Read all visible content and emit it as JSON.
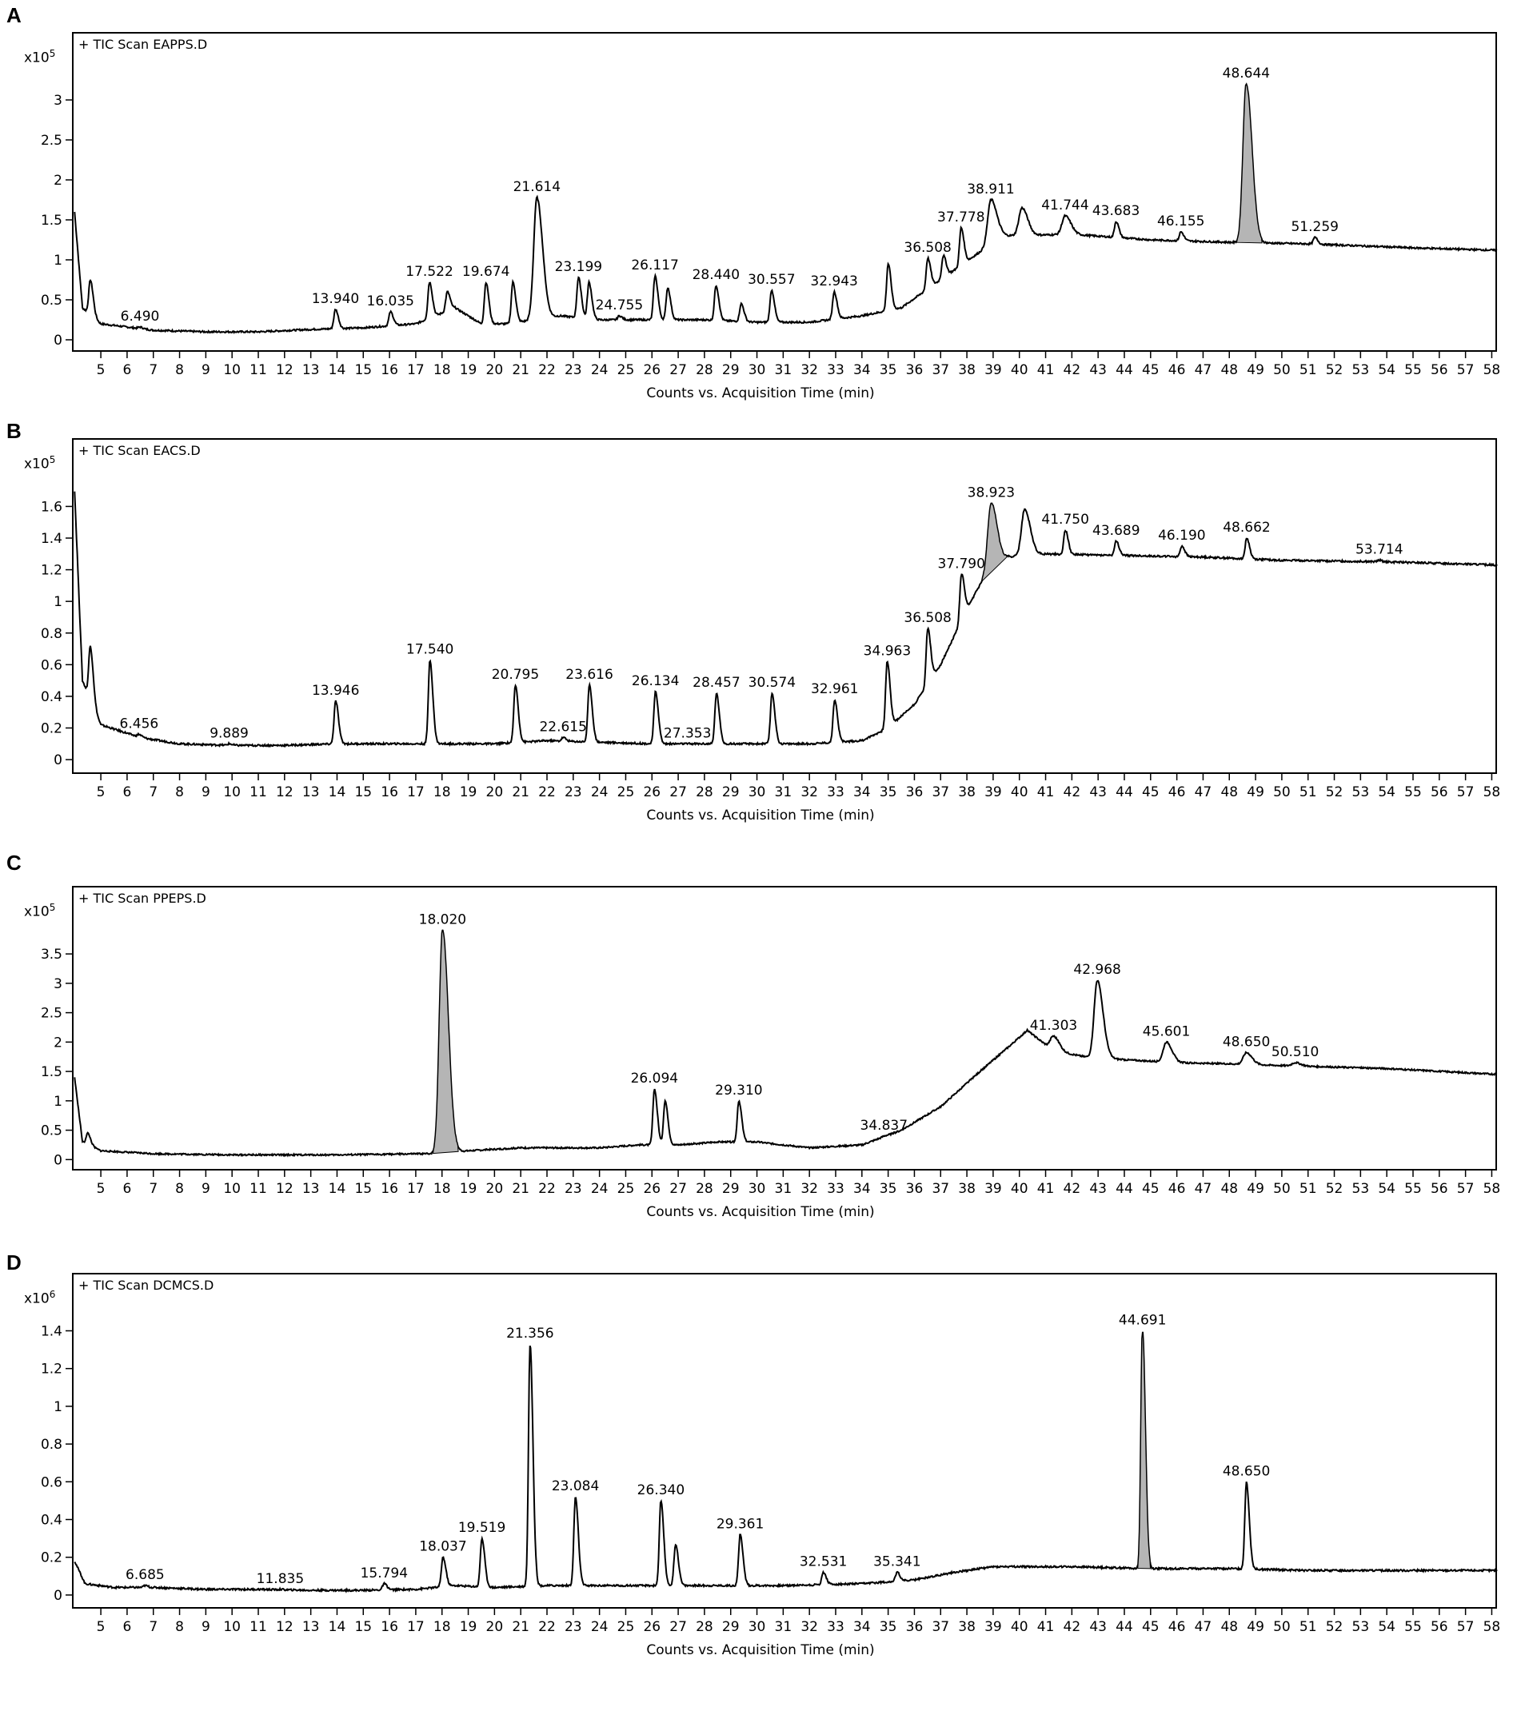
{
  "chart_data": [
    {
      "type": "line",
      "panel": "A",
      "title": "+ TIC Scan EAPPS.D",
      "scale_base": "x10",
      "scale_exp": "5",
      "xlabel": "Counts vs. Acquisition Time (min)",
      "ylabel": "",
      "xlim": [
        3.9,
        58.2
      ],
      "ylim": [
        -0.05,
        3.55
      ],
      "xticks": [
        5,
        6,
        7,
        8,
        9,
        10,
        11,
        12,
        13,
        14,
        15,
        16,
        17,
        18,
        19,
        20,
        21,
        22,
        23,
        24,
        25,
        26,
        27,
        28,
        29,
        30,
        31,
        32,
        33,
        34,
        35,
        36,
        37,
        38,
        39,
        40,
        41,
        42,
        43,
        44,
        45,
        46,
        47,
        48,
        49,
        50,
        51,
        52,
        53,
        54,
        55,
        56,
        57,
        58
      ],
      "yticks": [
        0,
        0.5,
        1,
        1.5,
        2,
        2.5,
        3
      ],
      "ytick_labels": [
        "0",
        "0.5",
        "1",
        "1.5",
        "2",
        "2.5",
        "3"
      ],
      "baseline": [
        [
          4.0,
          1.6
        ],
        [
          4.3,
          0.4
        ],
        [
          5.0,
          0.2
        ],
        [
          7,
          0.12
        ],
        [
          9,
          0.1
        ],
        [
          11,
          0.1
        ],
        [
          13,
          0.13
        ],
        [
          15,
          0.15
        ],
        [
          17,
          0.2
        ],
        [
          18.5,
          0.4
        ],
        [
          19.5,
          0.2
        ],
        [
          20.5,
          0.2
        ],
        [
          22.5,
          0.3
        ],
        [
          24,
          0.25
        ],
        [
          26,
          0.25
        ],
        [
          28,
          0.25
        ],
        [
          30,
          0.22
        ],
        [
          32,
          0.22
        ],
        [
          34,
          0.3
        ],
        [
          35.5,
          0.4
        ],
        [
          37,
          0.75
        ],
        [
          38.5,
          1.1
        ],
        [
          39.3,
          1.3
        ],
        [
          42,
          1.32
        ],
        [
          45,
          1.25
        ],
        [
          48,
          1.22
        ],
        [
          51,
          1.2
        ],
        [
          55,
          1.15
        ],
        [
          58.2,
          1.12
        ]
      ],
      "peaks": [
        {
          "rt": 4.6,
          "height": 0.75,
          "label": ""
        },
        {
          "rt": 6.49,
          "height": 0.16,
          "label": "6.490"
        },
        {
          "rt": 13.94,
          "height": 0.38,
          "label": "13.940"
        },
        {
          "rt": 16.035,
          "height": 0.35,
          "label": "16.035"
        },
        {
          "rt": 17.522,
          "height": 0.72,
          "label": "17.522"
        },
        {
          "rt": 18.2,
          "height": 0.6,
          "label": ""
        },
        {
          "rt": 19.674,
          "height": 0.72,
          "label": "19.674"
        },
        {
          "rt": 20.7,
          "height": 0.72,
          "label": ""
        },
        {
          "rt": 21.614,
          "height": 1.78,
          "label": "21.614"
        },
        {
          "rt": 23.199,
          "height": 0.78,
          "label": "23.199"
        },
        {
          "rt": 23.6,
          "height": 0.72,
          "label": ""
        },
        {
          "rt": 24.755,
          "height": 0.3,
          "label": "24.755"
        },
        {
          "rt": 26.117,
          "height": 0.8,
          "label": "26.117"
        },
        {
          "rt": 26.6,
          "height": 0.65,
          "label": ""
        },
        {
          "rt": 28.44,
          "height": 0.68,
          "label": "28.440"
        },
        {
          "rt": 29.4,
          "height": 0.45,
          "label": ""
        },
        {
          "rt": 30.557,
          "height": 0.62,
          "label": "30.557"
        },
        {
          "rt": 32.943,
          "height": 0.6,
          "label": "32.943"
        },
        {
          "rt": 35.0,
          "height": 0.95,
          "label": ""
        },
        {
          "rt": 36.508,
          "height": 1.02,
          "label": "36.508"
        },
        {
          "rt": 37.1,
          "height": 1.05,
          "label": ""
        },
        {
          "rt": 37.778,
          "height": 1.4,
          "label": "37.778"
        },
        {
          "rt": 38.911,
          "height": 1.75,
          "label": "38.911"
        },
        {
          "rt": 40.1,
          "height": 1.65,
          "label": ""
        },
        {
          "rt": 41.744,
          "height": 1.55,
          "label": "41.744"
        },
        {
          "rt": 43.683,
          "height": 1.48,
          "label": "43.683"
        },
        {
          "rt": 46.155,
          "height": 1.35,
          "label": "46.155"
        },
        {
          "rt": 48.644,
          "height": 3.2,
          "label": "48.644"
        },
        {
          "rt": 51.259,
          "height": 1.28,
          "label": "51.259"
        }
      ]
    },
    {
      "type": "line",
      "panel": "B",
      "title": "+ TIC Scan EACS.D",
      "scale_base": "x10",
      "scale_exp": "5",
      "xlabel": "Counts vs. Acquisition Time (min)",
      "ylabel": "",
      "xlim": [
        3.9,
        58.2
      ],
      "ylim": [
        -0.04,
        1.88
      ],
      "xticks": [
        5,
        6,
        7,
        8,
        9,
        10,
        11,
        12,
        13,
        14,
        15,
        16,
        17,
        18,
        19,
        20,
        21,
        22,
        23,
        24,
        25,
        26,
        27,
        28,
        29,
        30,
        31,
        32,
        33,
        34,
        35,
        36,
        37,
        38,
        39,
        40,
        41,
        42,
        43,
        44,
        45,
        46,
        47,
        48,
        49,
        50,
        51,
        52,
        53,
        54,
        55,
        56,
        57,
        58
      ],
      "yticks": [
        0,
        0.2,
        0.4,
        0.6,
        0.8,
        1,
        1.2,
        1.4,
        1.6
      ],
      "ytick_labels": [
        "0",
        "0.2",
        "0.4",
        "0.6",
        "0.8",
        "1",
        "1.2",
        "1.4",
        "1.6"
      ],
      "baseline": [
        [
          4.0,
          1.7
        ],
        [
          4.3,
          0.5
        ],
        [
          5.0,
          0.22
        ],
        [
          6.5,
          0.14
        ],
        [
          8,
          0.1
        ],
        [
          10,
          0.09
        ],
        [
          12,
          0.09
        ],
        [
          14,
          0.1
        ],
        [
          16,
          0.1
        ],
        [
          18,
          0.1
        ],
        [
          20,
          0.1
        ],
        [
          22,
          0.12
        ],
        [
          24,
          0.11
        ],
        [
          26,
          0.1
        ],
        [
          28,
          0.1
        ],
        [
          30,
          0.1
        ],
        [
          32,
          0.1
        ],
        [
          34,
          0.12
        ],
        [
          35,
          0.2
        ],
        [
          36,
          0.35
        ],
        [
          37,
          0.6
        ],
        [
          38,
          0.95
        ],
        [
          38.8,
          1.2
        ],
        [
          39.5,
          1.28
        ],
        [
          41,
          1.3
        ],
        [
          44,
          1.29
        ],
        [
          47,
          1.28
        ],
        [
          50,
          1.26
        ],
        [
          54,
          1.25
        ],
        [
          58.2,
          1.23
        ]
      ],
      "peaks": [
        {
          "rt": 4.6,
          "height": 0.72,
          "label": ""
        },
        {
          "rt": 6.456,
          "height": 0.16,
          "label": "6.456"
        },
        {
          "rt": 9.889,
          "height": 0.1,
          "label": "9.889"
        },
        {
          "rt": 13.946,
          "height": 0.37,
          "label": "13.946"
        },
        {
          "rt": 17.54,
          "height": 0.63,
          "label": "17.540"
        },
        {
          "rt": 20.795,
          "height": 0.47,
          "label": "20.795"
        },
        {
          "rt": 22.615,
          "height": 0.14,
          "label": "22.615"
        },
        {
          "rt": 23.616,
          "height": 0.47,
          "label": "23.616"
        },
        {
          "rt": 26.134,
          "height": 0.43,
          "label": "26.134"
        },
        {
          "rt": 27.353,
          "height": 0.1,
          "label": "27.353"
        },
        {
          "rt": 28.457,
          "height": 0.42,
          "label": "28.457"
        },
        {
          "rt": 30.574,
          "height": 0.42,
          "label": "30.574"
        },
        {
          "rt": 32.961,
          "height": 0.38,
          "label": "32.961"
        },
        {
          "rt": 34.963,
          "height": 0.62,
          "label": "34.963"
        },
        {
          "rt": 36.508,
          "height": 0.83,
          "label": "36.508"
        },
        {
          "rt": 37.79,
          "height": 1.17,
          "label": "37.790"
        },
        {
          "rt": 38.923,
          "height": 1.62,
          "label": "38.923"
        },
        {
          "rt": 40.2,
          "height": 1.58,
          "label": ""
        },
        {
          "rt": 41.75,
          "height": 1.45,
          "label": "41.750"
        },
        {
          "rt": 43.689,
          "height": 1.38,
          "label": "43.689"
        },
        {
          "rt": 46.19,
          "height": 1.35,
          "label": "46.190"
        },
        {
          "rt": 48.662,
          "height": 1.4,
          "label": "48.662"
        },
        {
          "rt": 53.714,
          "height": 1.26,
          "label": "53.714"
        }
      ]
    },
    {
      "type": "line",
      "panel": "C",
      "title": "+ TIC Scan PPEPS.D",
      "scale_base": "x10",
      "scale_exp": "5",
      "xlabel": "Counts vs. Acquisition Time (min)",
      "ylabel": "",
      "xlim": [
        3.9,
        58.2
      ],
      "ylim": [
        -0.05,
        4.25
      ],
      "xticks": [
        5,
        6,
        7,
        8,
        9,
        10,
        11,
        12,
        13,
        14,
        15,
        16,
        17,
        18,
        19,
        20,
        21,
        22,
        23,
        24,
        25,
        26,
        27,
        28,
        29,
        30,
        31,
        32,
        33,
        34,
        35,
        36,
        37,
        38,
        39,
        40,
        41,
        42,
        43,
        44,
        45,
        46,
        47,
        48,
        49,
        50,
        51,
        52,
        53,
        54,
        55,
        56,
        57,
        58
      ],
      "yticks": [
        0,
        0.5,
        1,
        1.5,
        2,
        2.5,
        3,
        3.5
      ],
      "ytick_labels": [
        "0",
        "0.5",
        "1",
        "1.5",
        "2",
        "2.5",
        "3",
        "3.5"
      ],
      "baseline": [
        [
          4.0,
          1.4
        ],
        [
          4.3,
          0.3
        ],
        [
          5.0,
          0.15
        ],
        [
          7,
          0.1
        ],
        [
          10,
          0.08
        ],
        [
          14,
          0.08
        ],
        [
          17.5,
          0.1
        ],
        [
          19,
          0.15
        ],
        [
          21,
          0.2
        ],
        [
          24,
          0.2
        ],
        [
          25.5,
          0.25
        ],
        [
          27,
          0.25
        ],
        [
          28.5,
          0.3
        ],
        [
          30,
          0.3
        ],
        [
          32,
          0.2
        ],
        [
          34,
          0.25
        ],
        [
          35.5,
          0.5
        ],
        [
          37,
          0.9
        ],
        [
          38.5,
          1.5
        ],
        [
          39.8,
          2.0
        ],
        [
          40.3,
          2.2
        ],
        [
          41.3,
          1.85
        ],
        [
          42.5,
          1.75
        ],
        [
          44,
          1.7
        ],
        [
          46,
          1.65
        ],
        [
          48,
          1.63
        ],
        [
          50,
          1.6
        ],
        [
          54,
          1.55
        ],
        [
          58.2,
          1.45
        ]
      ],
      "peaks": [
        {
          "rt": 4.5,
          "height": 0.45,
          "label": ""
        },
        {
          "rt": 18.02,
          "height": 3.9,
          "label": "18.020"
        },
        {
          "rt": 26.094,
          "height": 1.2,
          "label": "26.094"
        },
        {
          "rt": 26.5,
          "height": 1.0,
          "label": ""
        },
        {
          "rt": 29.31,
          "height": 1.0,
          "label": "29.310"
        },
        {
          "rt": 34.837,
          "height": 0.4,
          "label": "34.837"
        },
        {
          "rt": 41.303,
          "height": 2.1,
          "label": "41.303"
        },
        {
          "rt": 42.968,
          "height": 3.05,
          "label": "42.968"
        },
        {
          "rt": 45.601,
          "height": 2.0,
          "label": "45.601"
        },
        {
          "rt": 48.65,
          "height": 1.82,
          "label": "48.650"
        },
        {
          "rt": 50.51,
          "height": 1.65,
          "label": "50.510"
        }
      ]
    },
    {
      "type": "line",
      "panel": "D",
      "title": "+ TIC Scan DCMCS.D",
      "scale_base": "x10",
      "scale_exp": "6",
      "xlabel": "Counts vs. Acquisition Time (min)",
      "ylabel": "",
      "xlim": [
        3.9,
        58.2
      ],
      "ylim": [
        -0.03,
        1.58
      ],
      "xticks": [
        5,
        6,
        7,
        8,
        9,
        10,
        11,
        12,
        13,
        14,
        15,
        16,
        17,
        18,
        19,
        20,
        21,
        22,
        23,
        24,
        25,
        26,
        27,
        28,
        29,
        30,
        31,
        32,
        33,
        34,
        35,
        36,
        37,
        38,
        39,
        40,
        41,
        42,
        43,
        44,
        45,
        46,
        47,
        48,
        49,
        50,
        51,
        52,
        53,
        54,
        55,
        56,
        57,
        58
      ],
      "yticks": [
        0,
        0.2,
        0.4,
        0.6,
        0.8,
        1,
        1.2,
        1.4
      ],
      "ytick_labels": [
        "0",
        "0.2",
        "0.4",
        "0.6",
        "0.8",
        "1",
        "1.2",
        "1.4"
      ],
      "baseline": [
        [
          4.0,
          0.18
        ],
        [
          4.4,
          0.06
        ],
        [
          5.5,
          0.04
        ],
        [
          7,
          0.04
        ],
        [
          9,
          0.03
        ],
        [
          11,
          0.03
        ],
        [
          13,
          0.025
        ],
        [
          15,
          0.025
        ],
        [
          17,
          0.03
        ],
        [
          18.5,
          0.05
        ],
        [
          20,
          0.04
        ],
        [
          22,
          0.05
        ],
        [
          25,
          0.05
        ],
        [
          28,
          0.05
        ],
        [
          31,
          0.05
        ],
        [
          34,
          0.06
        ],
        [
          36,
          0.08
        ],
        [
          37.5,
          0.12
        ],
        [
          39,
          0.15
        ],
        [
          42,
          0.15
        ],
        [
          45,
          0.14
        ],
        [
          48,
          0.14
        ],
        [
          51,
          0.13
        ],
        [
          55,
          0.13
        ],
        [
          58.2,
          0.13
        ]
      ],
      "peaks": [
        {
          "rt": 6.685,
          "height": 0.05,
          "label": "6.685"
        },
        {
          "rt": 11.835,
          "height": 0.03,
          "label": "11.835"
        },
        {
          "rt": 15.794,
          "height": 0.06,
          "label": "15.794"
        },
        {
          "rt": 18.037,
          "height": 0.2,
          "label": "18.037"
        },
        {
          "rt": 19.519,
          "height": 0.3,
          "label": "19.519"
        },
        {
          "rt": 21.356,
          "height": 1.33,
          "label": "21.356"
        },
        {
          "rt": 23.084,
          "height": 0.52,
          "label": "23.084"
        },
        {
          "rt": 26.34,
          "height": 0.5,
          "label": "26.340"
        },
        {
          "rt": 26.9,
          "height": 0.27,
          "label": ""
        },
        {
          "rt": 29.361,
          "height": 0.32,
          "label": "29.361"
        },
        {
          "rt": 32.531,
          "height": 0.12,
          "label": "32.531"
        },
        {
          "rt": 35.341,
          "height": 0.12,
          "label": "35.341"
        },
        {
          "rt": 44.691,
          "height": 1.4,
          "label": "44.691"
        },
        {
          "rt": 48.65,
          "height": 0.6,
          "label": "48.650"
        }
      ]
    }
  ]
}
